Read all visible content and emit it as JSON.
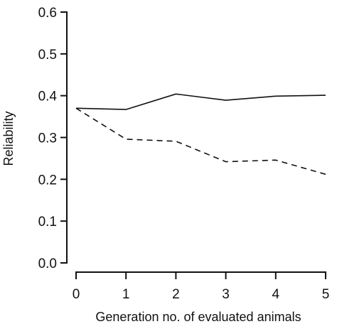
{
  "chart_data": {
    "type": "line",
    "xlabel": "Generation no. of evaluated animals",
    "ylabel": "Reliability",
    "xlim": [
      0,
      5
    ],
    "ylim": [
      0,
      0.6
    ],
    "x": [
      0,
      1,
      2,
      3,
      4,
      5
    ],
    "xticks": [
      "0",
      "1",
      "2",
      "3",
      "4",
      "5"
    ],
    "yticks": [
      "0.0",
      "0.1",
      "0.2",
      "0.3",
      "0.4",
      "0.5",
      "0.6"
    ],
    "ytick_values": [
      0,
      0.1,
      0.2,
      0.3,
      0.4,
      0.5,
      0.6
    ],
    "grid": false,
    "legend": "none",
    "series": [
      {
        "style": "solid",
        "color": "#111111",
        "values": [
          0.37,
          0.367,
          0.404,
          0.389,
          0.399,
          0.401
        ]
      },
      {
        "style": "dashed",
        "color": "#111111",
        "values": [
          0.37,
          0.296,
          0.291,
          0.242,
          0.246,
          0.212
        ]
      }
    ]
  }
}
